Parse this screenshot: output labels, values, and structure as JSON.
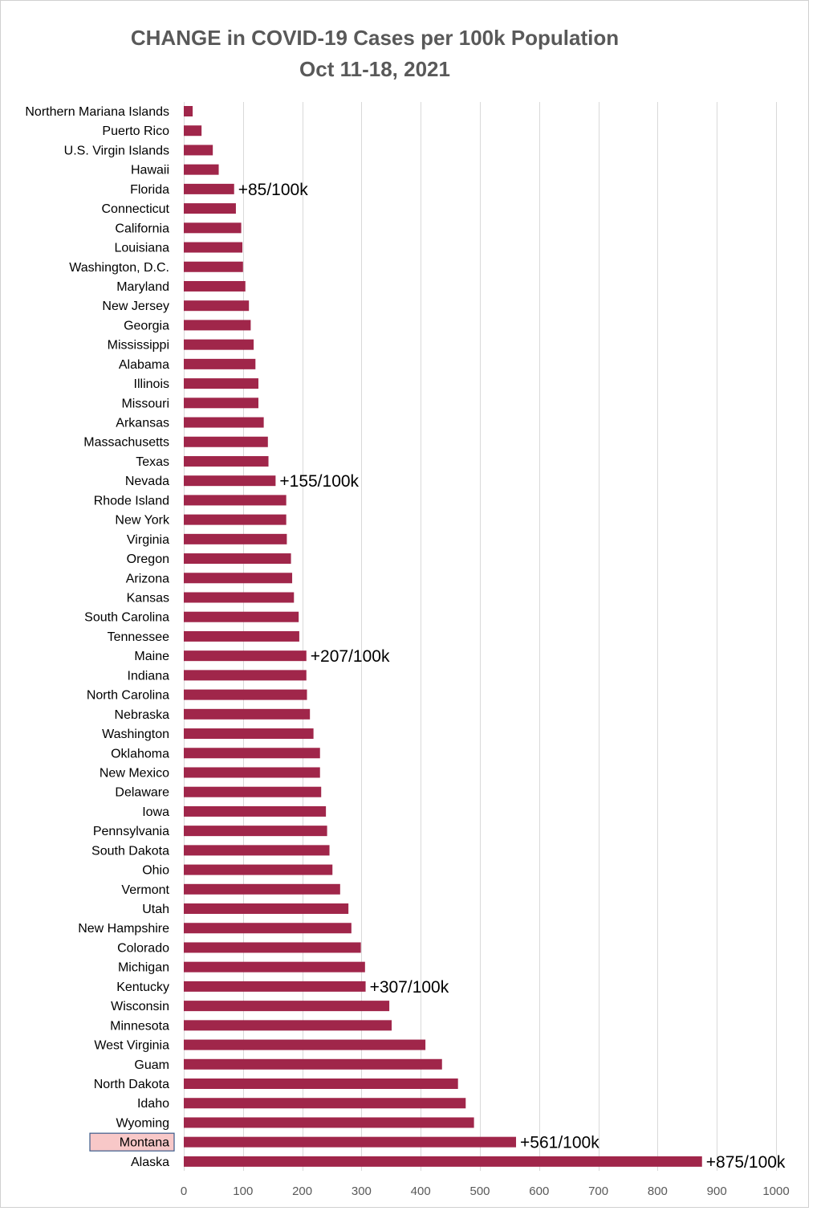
{
  "chart_data": {
    "type": "bar",
    "orientation": "horizontal",
    "title": "CHANGE in COVID-19 Cases per 100k Population",
    "subtitle": "Oct 11-18, 2021",
    "xlabel": "",
    "ylabel": "",
    "xlim": [
      0,
      1000
    ],
    "xticks": [
      0,
      100,
      200,
      300,
      400,
      500,
      600,
      700,
      800,
      900,
      1000
    ],
    "grid": true,
    "bar_color": "#A0264A",
    "highlight_fill": "#F8C8C8",
    "highlight_border": "#3A5A8A",
    "highlight_category": "Montana",
    "categories": [
      "Northern Mariana Islands",
      "Puerto Rico",
      "U.S. Virgin Islands",
      "Hawaii",
      "Florida",
      "Connecticut",
      "California",
      "Louisiana",
      "Washington, D.C.",
      "Maryland",
      "New Jersey",
      "Georgia",
      "Mississippi",
      "Alabama",
      "Illinois",
      "Missouri",
      "Arkansas",
      "Massachusetts",
      "Texas",
      "Nevada",
      "Rhode Island",
      "New York",
      "Virginia",
      "Oregon",
      "Arizona",
      "Kansas",
      "South Carolina",
      "Tennessee",
      "Maine",
      "Indiana",
      "North Carolina",
      "Nebraska",
      "Washington",
      "Oklahoma",
      "New Mexico",
      "Delaware",
      "Iowa",
      "Pennsylvania",
      "South Dakota",
      "Ohio",
      "Vermont",
      "Utah",
      "New Hampshire",
      "Colorado",
      "Michigan",
      "Kentucky",
      "Wisconsin",
      "Minnesota",
      "West Virginia",
      "Guam",
      "North Dakota",
      "Idaho",
      "Wyoming",
      "Montana",
      "Alaska"
    ],
    "values": [
      15,
      30,
      49,
      59,
      85,
      88,
      97,
      99,
      100,
      104,
      110,
      113,
      118,
      121,
      126,
      126,
      135,
      142,
      143,
      155,
      173,
      173,
      174,
      181,
      183,
      186,
      194,
      195,
      207,
      207,
      208,
      213,
      219,
      230,
      230,
      232,
      240,
      242,
      246,
      251,
      264,
      278,
      283,
      299,
      306,
      307,
      347,
      351,
      408,
      436,
      463,
      476,
      490,
      561,
      875
    ],
    "data_labels": [
      {
        "category": "Florida",
        "text": "+85/100k"
      },
      {
        "category": "Nevada",
        "text": "+155/100k"
      },
      {
        "category": "Maine",
        "text": "+207/100k"
      },
      {
        "category": "Kentucky",
        "text": "+307/100k"
      },
      {
        "category": "Montana",
        "text": "+561/100k"
      },
      {
        "category": "Alaska",
        "text": "+875/100k"
      }
    ]
  }
}
